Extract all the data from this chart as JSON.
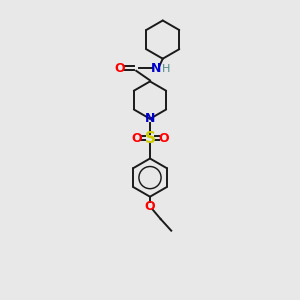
{
  "background_color": "#e8e8e8",
  "bond_color": "#1a1a1a",
  "atom_colors": {
    "O": "#ff0000",
    "N": "#0000cc",
    "S": "#cccc00",
    "H": "#4a8a8a",
    "C": "#1a1a1a"
  },
  "figsize": [
    3.0,
    3.0
  ],
  "dpi": 100,
  "xlim": [
    0,
    10
  ],
  "ylim": [
    0,
    14
  ]
}
